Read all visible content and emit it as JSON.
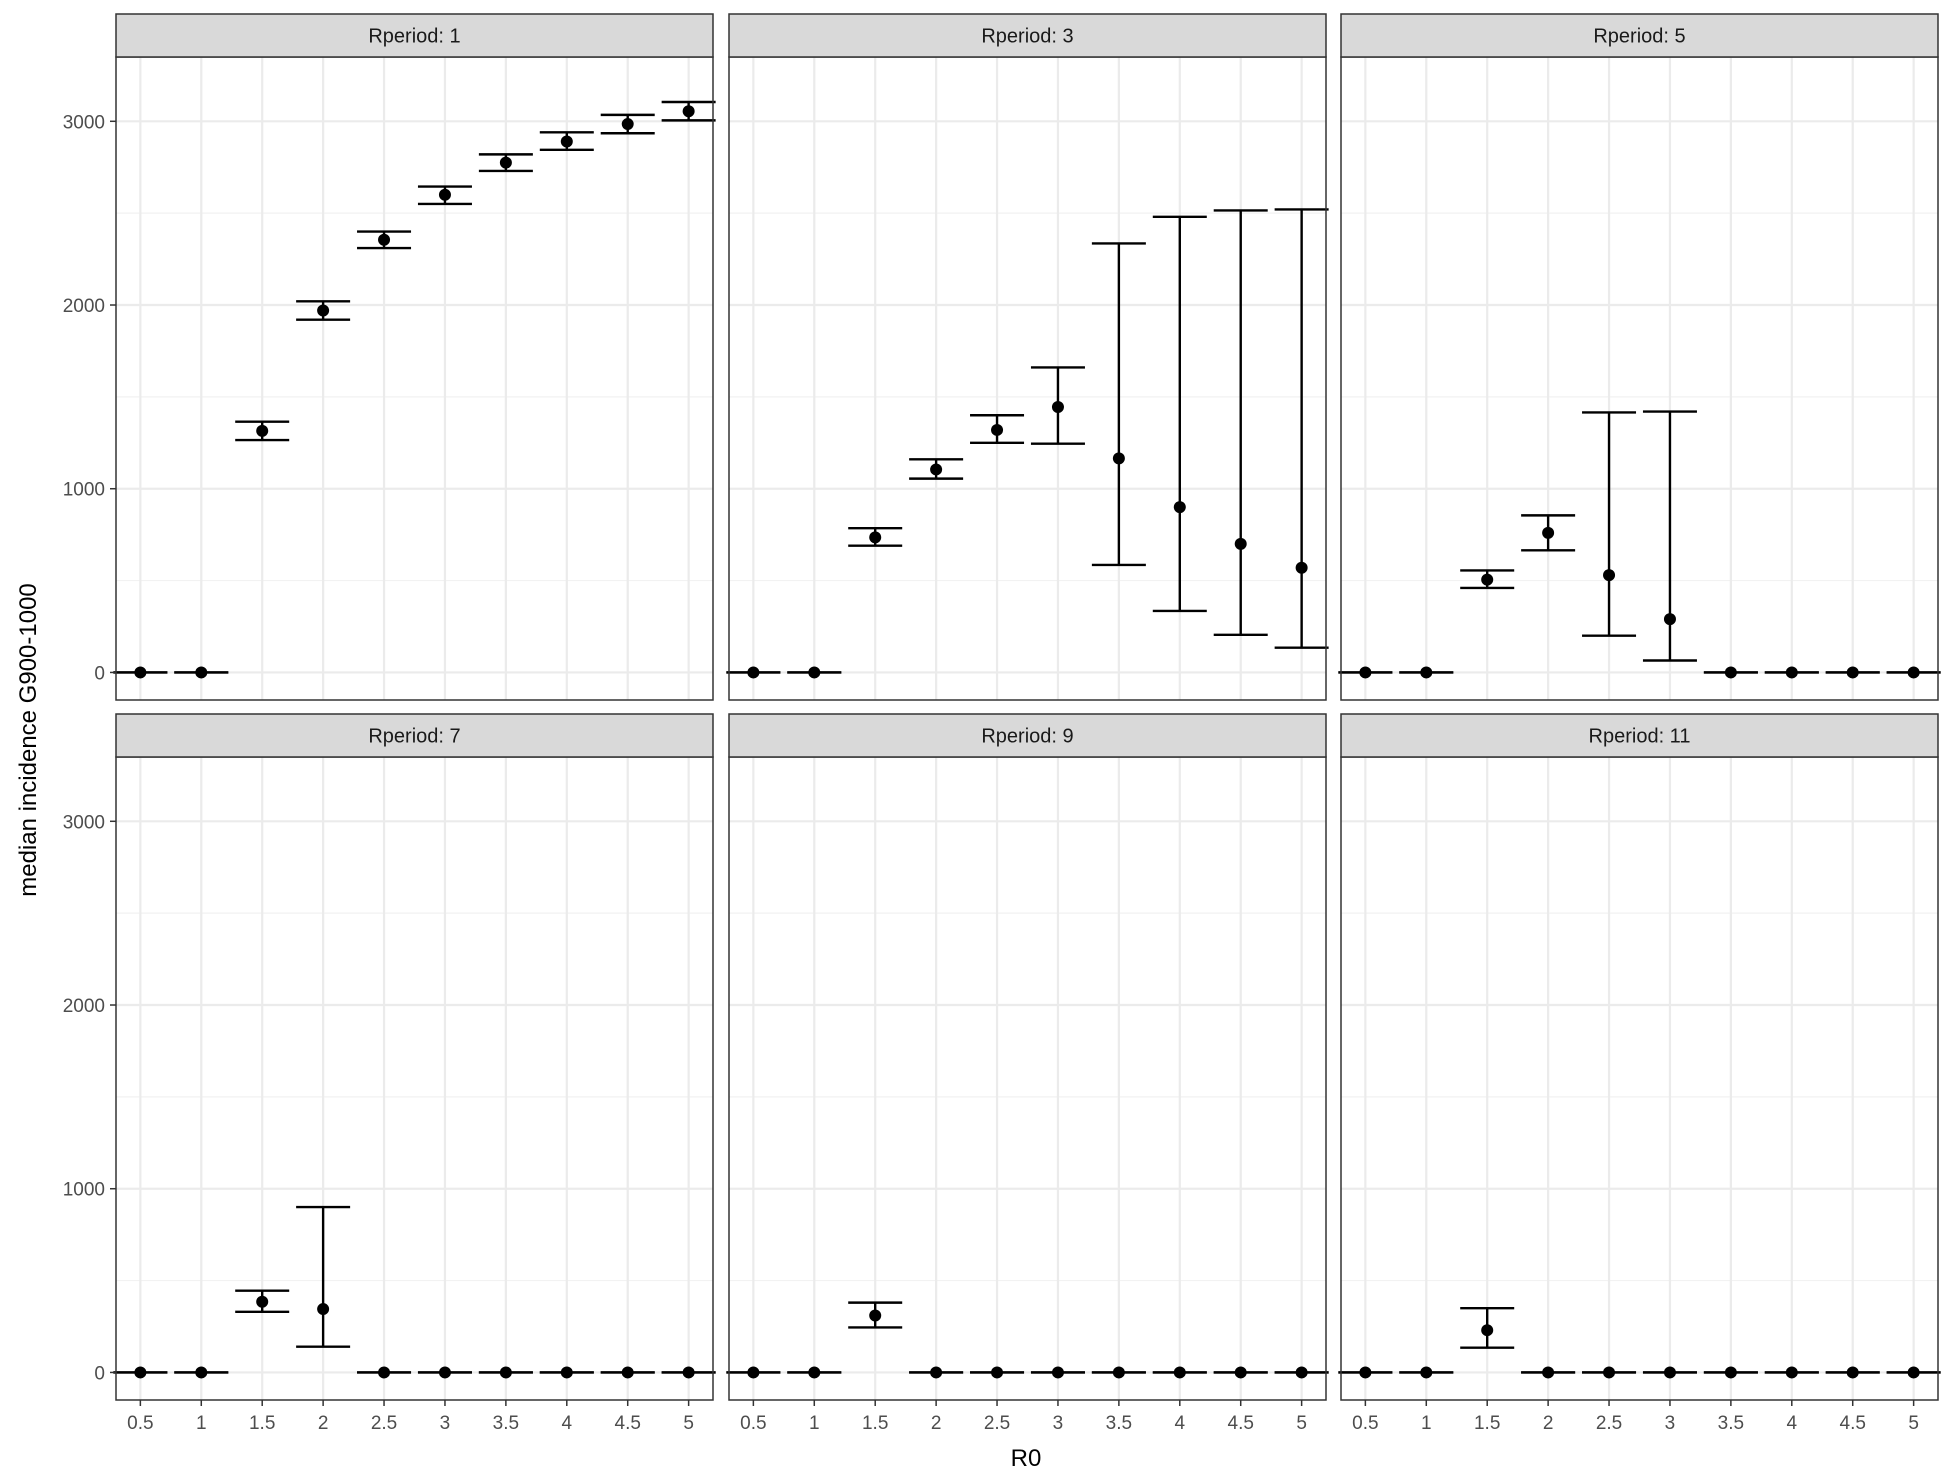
{
  "chart_data": {
    "type": "scatter",
    "subtype": "faceted point-range with error bars",
    "xlabel": "R0",
    "ylabel": "median incidence G900-1000",
    "x_ticks": [
      "0.5",
      "1",
      "1.5",
      "2",
      "2.5",
      "3",
      "3.5",
      "4",
      "4.5",
      "5"
    ],
    "y_ticks": [
      0,
      1000,
      2000,
      3000
    ],
    "ylim": [
      -150,
      3350
    ],
    "grid": true,
    "facet_layout": {
      "rows": 2,
      "cols": 3
    },
    "facets": [
      {
        "label": "Rperiod: 1",
        "points": [
          {
            "x": 0.5,
            "y": 0,
            "lo": 0,
            "hi": 0
          },
          {
            "x": 1,
            "y": 0,
            "lo": 0,
            "hi": 0
          },
          {
            "x": 1.5,
            "y": 1315,
            "lo": 1265,
            "hi": 1365
          },
          {
            "x": 2,
            "y": 1970,
            "lo": 1920,
            "hi": 2020
          },
          {
            "x": 2.5,
            "y": 2355,
            "lo": 2310,
            "hi": 2400
          },
          {
            "x": 3,
            "y": 2600,
            "lo": 2550,
            "hi": 2645
          },
          {
            "x": 3.5,
            "y": 2775,
            "lo": 2730,
            "hi": 2820
          },
          {
            "x": 4,
            "y": 2890,
            "lo": 2845,
            "hi": 2940
          },
          {
            "x": 4.5,
            "y": 2985,
            "lo": 2935,
            "hi": 3035
          },
          {
            "x": 5,
            "y": 3055,
            "lo": 3005,
            "hi": 3105
          }
        ]
      },
      {
        "label": "Rperiod: 3",
        "points": [
          {
            "x": 0.5,
            "y": 0,
            "lo": 0,
            "hi": 0
          },
          {
            "x": 1,
            "y": 0,
            "lo": 0,
            "hi": 0
          },
          {
            "x": 1.5,
            "y": 735,
            "lo": 690,
            "hi": 785
          },
          {
            "x": 2,
            "y": 1105,
            "lo": 1055,
            "hi": 1160
          },
          {
            "x": 2.5,
            "y": 1320,
            "lo": 1250,
            "hi": 1400
          },
          {
            "x": 3,
            "y": 1445,
            "lo": 1245,
            "hi": 1660
          },
          {
            "x": 3.5,
            "y": 1165,
            "lo": 585,
            "hi": 2335
          },
          {
            "x": 4,
            "y": 900,
            "lo": 335,
            "hi": 2480
          },
          {
            "x": 4.5,
            "y": 700,
            "lo": 205,
            "hi": 2515
          },
          {
            "x": 5,
            "y": 570,
            "lo": 135,
            "hi": 2520
          }
        ]
      },
      {
        "label": "Rperiod: 5",
        "points": [
          {
            "x": 0.5,
            "y": 0,
            "lo": 0,
            "hi": 0
          },
          {
            "x": 1,
            "y": 0,
            "lo": 0,
            "hi": 0
          },
          {
            "x": 1.5,
            "y": 505,
            "lo": 460,
            "hi": 555
          },
          {
            "x": 2,
            "y": 760,
            "lo": 665,
            "hi": 855
          },
          {
            "x": 2.5,
            "y": 530,
            "lo": 200,
            "hi": 1415
          },
          {
            "x": 3,
            "y": 290,
            "lo": 65,
            "hi": 1420
          },
          {
            "x": 3.5,
            "y": 0,
            "lo": 0,
            "hi": 0
          },
          {
            "x": 4,
            "y": 0,
            "lo": 0,
            "hi": 0
          },
          {
            "x": 4.5,
            "y": 0,
            "lo": 0,
            "hi": 0
          },
          {
            "x": 5,
            "y": 0,
            "lo": 0,
            "hi": 0
          }
        ]
      },
      {
        "label": "Rperiod: 7",
        "points": [
          {
            "x": 0.5,
            "y": 0,
            "lo": 0,
            "hi": 0
          },
          {
            "x": 1,
            "y": 0,
            "lo": 0,
            "hi": 0
          },
          {
            "x": 1.5,
            "y": 385,
            "lo": 330,
            "hi": 445
          },
          {
            "x": 2,
            "y": 345,
            "lo": 140,
            "hi": 900
          },
          {
            "x": 2.5,
            "y": 0,
            "lo": 0,
            "hi": 0
          },
          {
            "x": 3,
            "y": 0,
            "lo": 0,
            "hi": 0
          },
          {
            "x": 3.5,
            "y": 0,
            "lo": 0,
            "hi": 0
          },
          {
            "x": 4,
            "y": 0,
            "lo": 0,
            "hi": 0
          },
          {
            "x": 4.5,
            "y": 0,
            "lo": 0,
            "hi": 0
          },
          {
            "x": 5,
            "y": 0,
            "lo": 0,
            "hi": 0
          }
        ]
      },
      {
        "label": "Rperiod: 9",
        "points": [
          {
            "x": 0.5,
            "y": 0,
            "lo": 0,
            "hi": 0
          },
          {
            "x": 1,
            "y": 0,
            "lo": 0,
            "hi": 0
          },
          {
            "x": 1.5,
            "y": 310,
            "lo": 245,
            "hi": 380
          },
          {
            "x": 2,
            "y": 0,
            "lo": 0,
            "hi": 0
          },
          {
            "x": 2.5,
            "y": 0,
            "lo": 0,
            "hi": 0
          },
          {
            "x": 3,
            "y": 0,
            "lo": 0,
            "hi": 0
          },
          {
            "x": 3.5,
            "y": 0,
            "lo": 0,
            "hi": 0
          },
          {
            "x": 4,
            "y": 0,
            "lo": 0,
            "hi": 0
          },
          {
            "x": 4.5,
            "y": 0,
            "lo": 0,
            "hi": 0
          },
          {
            "x": 5,
            "y": 0,
            "lo": 0,
            "hi": 0
          }
        ]
      },
      {
        "label": "Rperiod: 11",
        "points": [
          {
            "x": 0.5,
            "y": 0,
            "lo": 0,
            "hi": 0
          },
          {
            "x": 1,
            "y": 0,
            "lo": 0,
            "hi": 0
          },
          {
            "x": 1.5,
            "y": 230,
            "lo": 135,
            "hi": 350
          },
          {
            "x": 2,
            "y": 0,
            "lo": 0,
            "hi": 0
          },
          {
            "x": 2.5,
            "y": 0,
            "lo": 0,
            "hi": 0
          },
          {
            "x": 3,
            "y": 0,
            "lo": 0,
            "hi": 0
          },
          {
            "x": 3.5,
            "y": 0,
            "lo": 0,
            "hi": 0
          },
          {
            "x": 4,
            "y": 0,
            "lo": 0,
            "hi": 0
          },
          {
            "x": 4.5,
            "y": 0,
            "lo": 0,
            "hi": 0
          },
          {
            "x": 5,
            "y": 0,
            "lo": 0,
            "hi": 0
          }
        ]
      }
    ]
  },
  "colors": {
    "background": "#ffffff",
    "panel_border": "#333333",
    "strip_fill": "#d9d9d9",
    "grid_major": "#ebebeb",
    "grid_minor": "#f2f2f2",
    "mark": "#000000"
  }
}
